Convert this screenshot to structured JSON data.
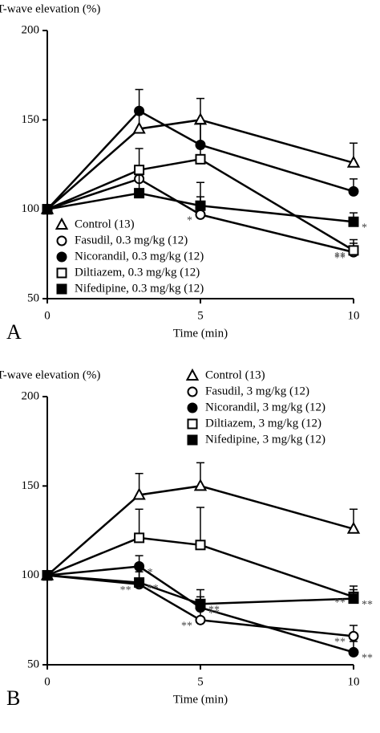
{
  "chart_data": [
    {
      "type": "line",
      "panel_label": "A",
      "y_label": "T-wave elevation (%)",
      "x_label": "Time (min)",
      "x": [
        0,
        3,
        5,
        10
      ],
      "xlim": [
        0,
        10
      ],
      "xticks": [
        0,
        5,
        10
      ],
      "ylim": [
        50,
        200
      ],
      "yticks": [
        50,
        100,
        150,
        200
      ],
      "legend": "lower left",
      "series": [
        {
          "name": "Control (13)",
          "color": "#000000",
          "marker": "triangle-open",
          "values": [
            100,
            145,
            150,
            126
          ],
          "errors": [
            0,
            11,
            12,
            11
          ],
          "significance": [
            null,
            null,
            null,
            null
          ]
        },
        {
          "name": "Fasudil, 0.3 mg/kg (12)",
          "color": "#000000",
          "marker": "circle-open",
          "values": [
            100,
            117,
            97,
            76
          ],
          "errors": [
            0,
            6,
            10,
            5
          ],
          "significance": [
            null,
            null,
            "*",
            "**"
          ]
        },
        {
          "name": "Nicorandil, 0.3 mg/kg (12)",
          "color": "#000000",
          "marker": "circle-filled",
          "values": [
            100,
            155,
            136,
            110
          ],
          "errors": [
            0,
            12,
            12,
            7
          ],
          "significance": [
            null,
            null,
            null,
            null
          ]
        },
        {
          "name": "Diltiazem, 0.3 mg/kg (12)",
          "color": "#000000",
          "marker": "square-open",
          "values": [
            100,
            122,
            128,
            77
          ],
          "errors": [
            0,
            12,
            20,
            6
          ],
          "significance": [
            null,
            null,
            null,
            "**"
          ]
        },
        {
          "name": "Nifedipine, 0.3 mg/kg (12)",
          "color": "#000000",
          "marker": "square-filled",
          "values": [
            100,
            109,
            102,
            93
          ],
          "errors": [
            0,
            10,
            13,
            5
          ],
          "significance": [
            null,
            null,
            null,
            "*"
          ]
        }
      ]
    },
    {
      "type": "line",
      "panel_label": "B",
      "y_label": "T-wave elevation (%)",
      "x_label": "Time (min)",
      "x": [
        0,
        3,
        5,
        10
      ],
      "xlim": [
        0,
        10
      ],
      "xticks": [
        0,
        5,
        10
      ],
      "ylim": [
        50,
        200
      ],
      "yticks": [
        50,
        100,
        150,
        200
      ],
      "legend": "upper right",
      "series": [
        {
          "name": "Control  (13)",
          "color": "#000000",
          "marker": "triangle-open",
          "values": [
            100,
            145,
            150,
            126
          ],
          "errors": [
            0,
            12,
            13,
            11
          ],
          "significance": [
            null,
            null,
            null,
            null
          ]
        },
        {
          "name": "Fasudil, 3 mg/kg (12)",
          "color": "#000000",
          "marker": "circle-open",
          "values": [
            100,
            95,
            75,
            66
          ],
          "errors": [
            0,
            7,
            6,
            6
          ],
          "significance": [
            null,
            "**",
            "**",
            "**"
          ]
        },
        {
          "name": "Nicorandil, 3 mg/kg (12)",
          "color": "#000000",
          "marker": "circle-filled",
          "values": [
            100,
            105,
            82,
            57
          ],
          "errors": [
            0,
            6,
            6,
            6
          ],
          "significance": [
            null,
            "*",
            "**",
            "**"
          ]
        },
        {
          "name": "Diltiazem, 3 mg/kg (12)",
          "color": "#000000",
          "marker": "square-open",
          "values": [
            100,
            121,
            117,
            88
          ],
          "errors": [
            0,
            16,
            21,
            6
          ],
          "significance": [
            null,
            null,
            null,
            "**"
          ]
        },
        {
          "name": "Nifedipine, 3 mg/kg (12)",
          "color": "#000000",
          "marker": "square-filled",
          "values": [
            100,
            96,
            84,
            87
          ],
          "errors": [
            0,
            8,
            8,
            5
          ],
          "significance": [
            null,
            "**",
            "**",
            "**"
          ]
        }
      ]
    }
  ]
}
